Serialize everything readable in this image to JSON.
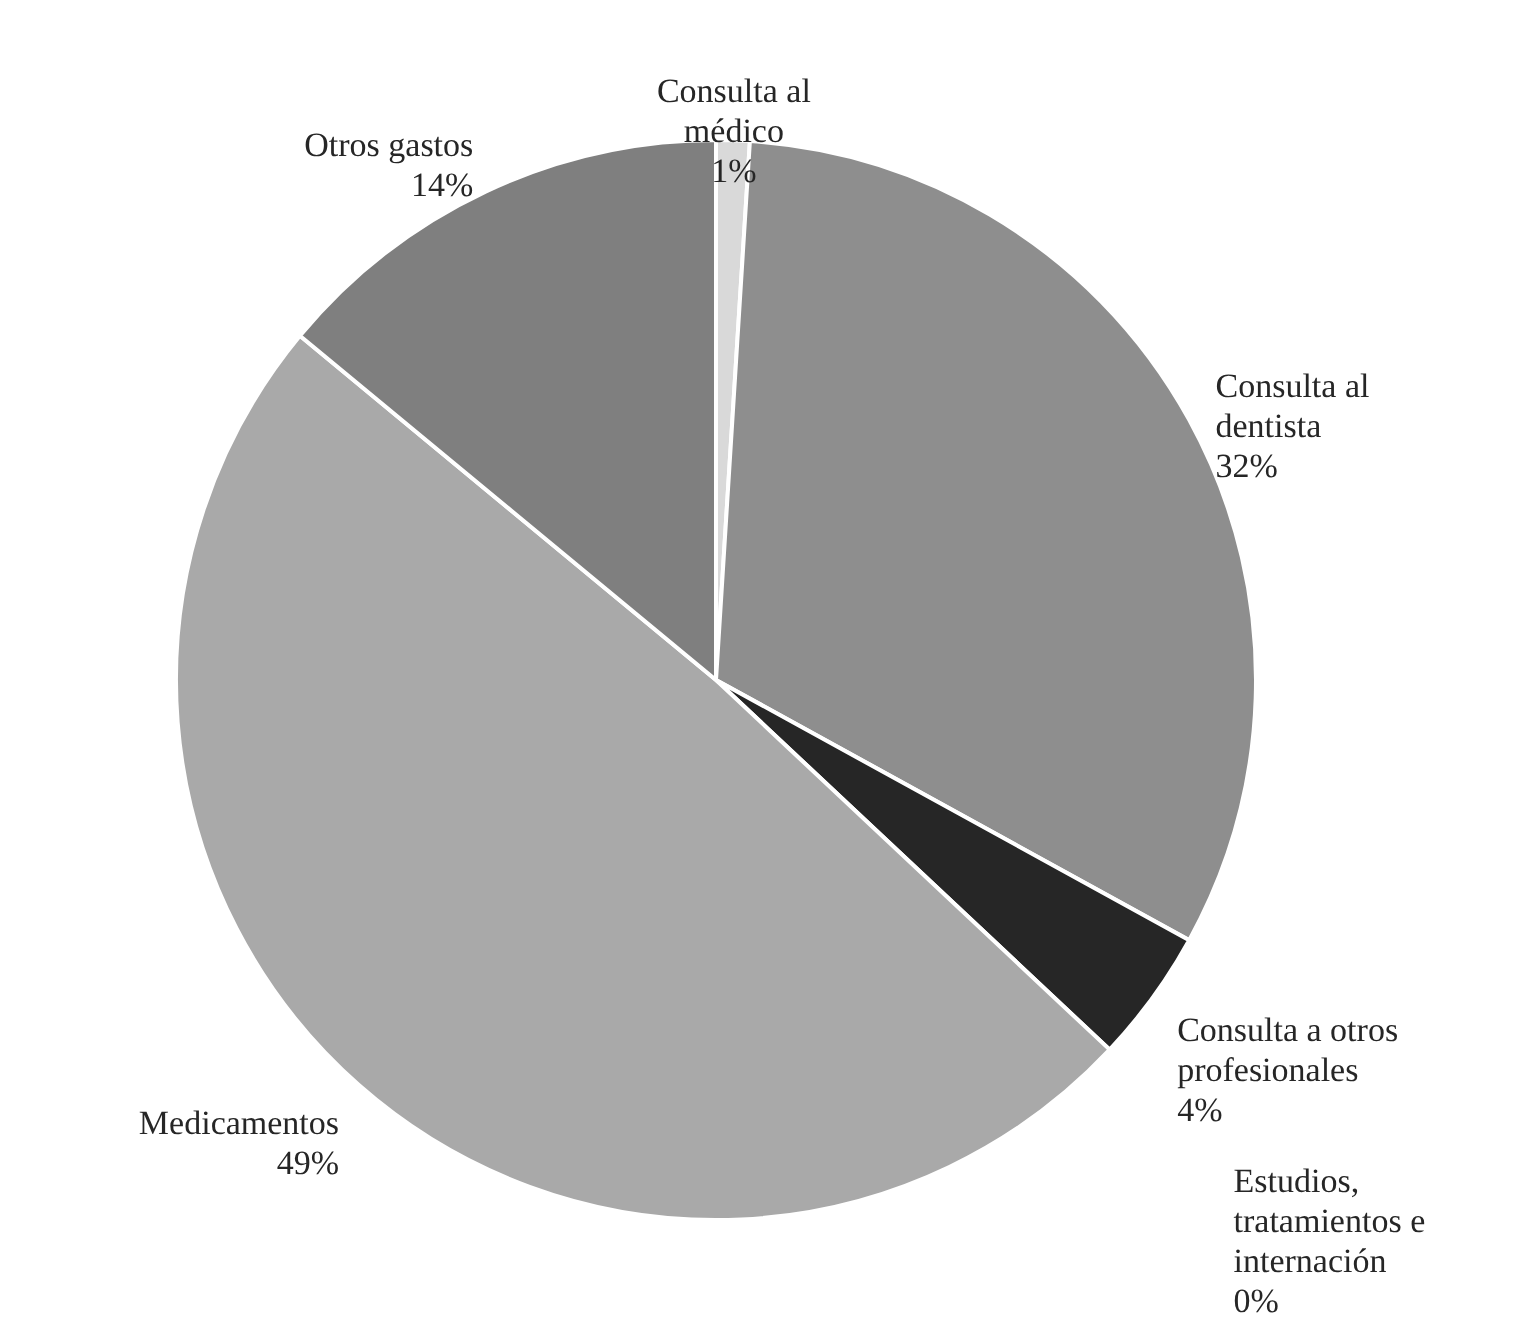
{
  "chart_data": {
    "type": "pie",
    "categories": [
      "Consulta al\nmédico",
      "Consulta al\ndentista",
      "Consulta a otros\nprofesionales",
      "Estudios,\ntratamientos  e\ninternación",
      "Medicamentos",
      "Otros gastos"
    ],
    "values": [
      1,
      32,
      4,
      0,
      49,
      14
    ],
    "value_labels": [
      "1%",
      "32%",
      "4%",
      "0%",
      "49%",
      "14%"
    ],
    "colors": [
      "#d9d9d9",
      "#8e8e8e",
      "#262626",
      "#f2f2f2",
      "#a9a9a9",
      "#7f7f7f"
    ]
  }
}
